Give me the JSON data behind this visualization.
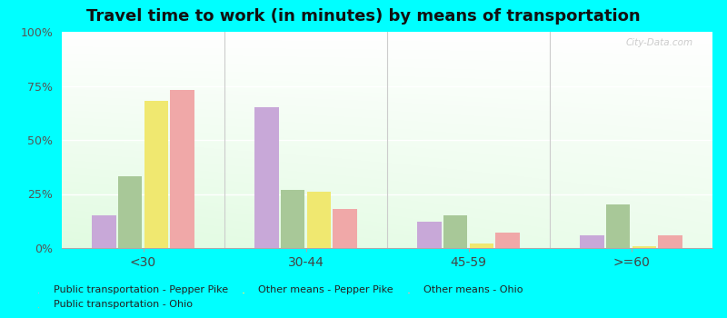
{
  "title": "Travel time to work (in minutes) by means of transportation",
  "categories": [
    "<30",
    "30-44",
    "45-59",
    ">=60"
  ],
  "series": {
    "Public transportation - Pepper Pike": [
      15,
      65,
      12,
      6
    ],
    "Public transportation - Ohio": [
      33,
      27,
      15,
      20
    ],
    "Other means - Pepper Pike": [
      68,
      26,
      2,
      1
    ],
    "Other means - Ohio": [
      73,
      18,
      7,
      6
    ]
  },
  "colors": {
    "Public transportation - Pepper Pike": "#c8a8d8",
    "Public transportation - Ohio": "#a8c898",
    "Other means - Pepper Pike": "#f0e870",
    "Other means - Ohio": "#f0a8a8"
  },
  "legend_order": [
    "Public transportation - Pepper Pike",
    "Public transportation - Ohio",
    "Other means - Pepper Pike",
    "Other means - Ohio"
  ],
  "ylim": [
    0,
    100
  ],
  "yticks": [
    0,
    25,
    50,
    75,
    100
  ],
  "ytick_labels": [
    "0%",
    "25%",
    "50%",
    "75%",
    "100%"
  ],
  "outer_background": "#00ffff",
  "bar_width": 0.16
}
